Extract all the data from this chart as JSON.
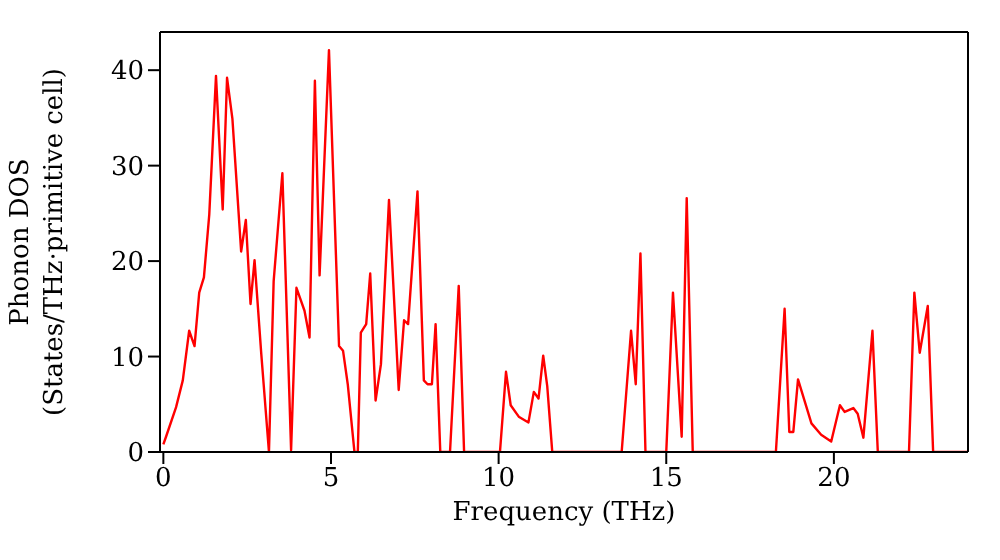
{
  "chart_data": {
    "type": "line",
    "xlabel": "Frequency (THz)",
    "ylabel": "Phonon DOS\n(States/THz·primitive cell)",
    "xlim": [
      -0.1,
      24
    ],
    "ylim": [
      0,
      44
    ],
    "xticks": [
      0,
      5,
      10,
      15,
      20
    ],
    "yticks": [
      0,
      10,
      20,
      30,
      40
    ],
    "marker": "none",
    "line_style": "solid",
    "x": [
      0,
      0.08,
      0.38,
      0.58,
      0.77,
      0.93,
      1.07,
      1.21,
      1.37,
      1.57,
      1.77,
      1.9,
      2.06,
      2.32,
      2.46,
      2.6,
      2.72,
      2.92,
      3.15,
      3.29,
      3.55,
      3.81,
      3.97,
      4.21,
      4.36,
      4.52,
      4.66,
      4.94,
      5.24,
      5.36,
      5.5,
      5.7,
      5.8,
      5.89,
      6.05,
      6.17,
      6.33,
      6.49,
      6.73,
      7.02,
      7.18,
      7.3,
      7.58,
      7.77,
      7.88,
      8.01,
      8.12,
      8.26,
      8.55,
      8.81,
      8.97,
      10.04,
      10.22,
      10.36,
      10.6,
      10.89,
      11.05,
      11.19,
      11.33,
      11.45,
      11.6,
      13.67,
      13.95,
      14.09,
      14.23,
      14.38,
      15.0,
      15.2,
      15.46,
      15.61,
      15.79,
      18.27,
      18.53,
      18.67,
      18.79,
      18.93,
      19.13,
      19.33,
      19.62,
      19.92,
      20.18,
      20.32,
      20.58,
      20.71,
      20.88,
      21.15,
      21.31,
      22.24,
      22.4,
      22.56,
      22.8,
      22.96,
      24
    ],
    "series": [
      {
        "color": "#ff0000",
        "values": [
          0.8,
          1.6,
          4.7,
          7.5,
          12.7,
          11.1,
          16.7,
          18.3,
          24.9,
          39.4,
          25.4,
          39.2,
          34.9,
          21,
          24.3,
          15.5,
          20.1,
          10.3,
          0,
          17.9,
          29.2,
          0.2,
          17.2,
          14.8,
          12,
          38.9,
          18.5,
          42.1,
          11.1,
          10.6,
          7.1,
          0,
          0,
          12.5,
          13.4,
          18.7,
          5.4,
          9.2,
          26.4,
          6.5,
          13.8,
          13.4,
          27.3,
          7.5,
          7.1,
          7.1,
          13.4,
          0,
          0,
          17.4,
          0,
          0,
          8.4,
          4.9,
          3.7,
          3.1,
          6.3,
          5.6,
          10.1,
          6.9,
          0,
          0,
          12.7,
          7.1,
          20.8,
          0,
          0,
          16.7,
          1.6,
          26.6,
          0,
          0,
          15,
          2.1,
          2.1,
          7.6,
          5.3,
          3,
          1.8,
          1.1,
          4.9,
          4.2,
          4.6,
          4,
          1.5,
          12.7,
          0,
          0,
          16.7,
          10.4,
          15.3,
          0,
          0
        ]
      }
    ]
  }
}
